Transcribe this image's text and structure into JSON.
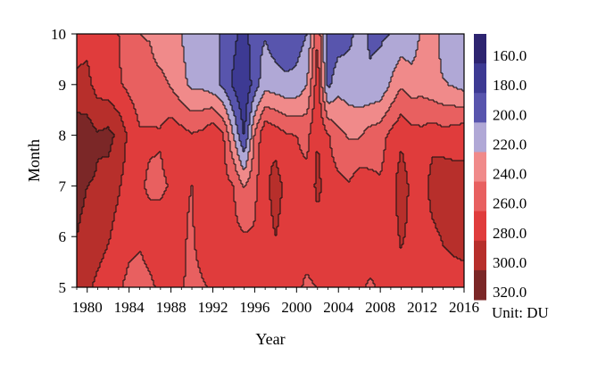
{
  "chart_data": {
    "type": "heatmap",
    "xlabel": "Year",
    "ylabel": "Month",
    "xlim": [
      1979,
      2016
    ],
    "ylim": [
      5,
      10
    ],
    "x_ticks": [
      1980,
      1984,
      1988,
      1992,
      1996,
      2000,
      2004,
      2008,
      2012,
      2016
    ],
    "y_ticks": [
      5,
      6,
      7,
      8,
      9,
      10
    ],
    "colorbar": {
      "unit_label": "Unit: DU",
      "levels": [
        "160.0",
        "180.0",
        "200.0",
        "220.0",
        "240.0",
        "260.0",
        "280.0",
        "300.0",
        "320.0"
      ],
      "colors": [
        "#2d2470",
        "#3d3a93",
        "#5855ad",
        "#b0a8d6",
        "#f08a8a",
        "#e86060",
        "#e03c3c",
        "#b72f2b",
        "#7b2727"
      ]
    },
    "years": [
      1979,
      1980,
      1981,
      1982,
      1983,
      1984,
      1985,
      1986,
      1987,
      1988,
      1989,
      1990,
      1991,
      1992,
      1993,
      1994,
      1995,
      1996,
      1997,
      1998,
      1999,
      2000,
      2001,
      2002,
      2003,
      2004,
      2005,
      2006,
      2007,
      2008,
      2009,
      2010,
      2011,
      2012,
      2013,
      2014,
      2015,
      2016
    ],
    "months": [
      5,
      6,
      7,
      8,
      9,
      10
    ],
    "values": [
      [
        290,
        285,
        275,
        268,
        262,
        256,
        255,
        258,
        262,
        266,
        262,
        255,
        258,
        262,
        262,
        264,
        260,
        262,
        268,
        276,
        268,
        262,
        258,
        260,
        265,
        268,
        264,
        262,
        258,
        262,
        268,
        275,
        268,
        265,
        268,
        270,
        272,
        275
      ],
      [
        300,
        295,
        290,
        282,
        272,
        264,
        262,
        265,
        270,
        275,
        262,
        258,
        268,
        275,
        268,
        265,
        262,
        262,
        272,
        280,
        272,
        265,
        265,
        272,
        278,
        275,
        270,
        275,
        268,
        265,
        272,
        282,
        275,
        268,
        275,
        282,
        285,
        285
      ],
      [
        305,
        300,
        298,
        292,
        282,
        270,
        262,
        258,
        256,
        262,
        262,
        260,
        268,
        275,
        268,
        260,
        238,
        256,
        275,
        288,
        275,
        265,
        265,
        285,
        270,
        266,
        262,
        272,
        266,
        262,
        272,
        290,
        275,
        268,
        290,
        295,
        290,
        285
      ],
      [
        312,
        310,
        302,
        306,
        295,
        275,
        262,
        262,
        262,
        272,
        268,
        262,
        265,
        278,
        262,
        218,
        178,
        242,
        278,
        272,
        262,
        260,
        255,
        280,
        262,
        245,
        238,
        238,
        248,
        252,
        265,
        276,
        268,
        266,
        272,
        268,
        270,
        275
      ],
      [
        285,
        285,
        272,
        268,
        262,
        256,
        250,
        250,
        248,
        238,
        226,
        215,
        215,
        208,
        195,
        176,
        162,
        190,
        212,
        208,
        205,
        206,
        220,
        272,
        195,
        212,
        208,
        205,
        202,
        205,
        222,
        238,
        230,
        232,
        225,
        222,
        218,
        212
      ],
      [
        270,
        275,
        265,
        262,
        260,
        250,
        240,
        238,
        222,
        222,
        220,
        210,
        205,
        205,
        198,
        185,
        170,
        195,
        198,
        190,
        185,
        190,
        200,
        260,
        185,
        190,
        196,
        206,
        198,
        198,
        200,
        205,
        205,
        225,
        238,
        208,
        205,
        208
      ]
    ]
  }
}
